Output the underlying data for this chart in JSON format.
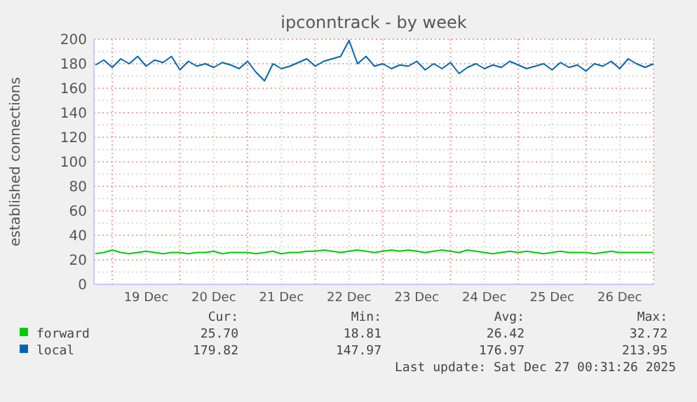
{
  "chart_data": {
    "type": "line",
    "title": "ipconntrack - by week",
    "ylabel": "established connections",
    "x": [
      "2025-12-18T18:00",
      "2025-12-18T21:00",
      "2025-12-19T00:00",
      "2025-12-19T03:00",
      "2025-12-19T06:00",
      "2025-12-19T09:00",
      "2025-12-19T12:00",
      "2025-12-19T15:00",
      "2025-12-19T18:00",
      "2025-12-19T21:00",
      "2025-12-20T00:00",
      "2025-12-20T03:00",
      "2025-12-20T06:00",
      "2025-12-20T09:00",
      "2025-12-20T12:00",
      "2025-12-20T15:00",
      "2025-12-20T18:00",
      "2025-12-20T21:00",
      "2025-12-21T00:00",
      "2025-12-21T03:00",
      "2025-12-21T06:00",
      "2025-12-21T09:00",
      "2025-12-21T12:00",
      "2025-12-21T15:00",
      "2025-12-21T18:00",
      "2025-12-21T21:00",
      "2025-12-22T00:00",
      "2025-12-22T03:00",
      "2025-12-22T06:00",
      "2025-12-22T09:00",
      "2025-12-22T12:00",
      "2025-12-22T15:00",
      "2025-12-22T18:00",
      "2025-12-22T21:00",
      "2025-12-23T00:00",
      "2025-12-23T03:00",
      "2025-12-23T06:00",
      "2025-12-23T09:00",
      "2025-12-23T12:00",
      "2025-12-23T15:00",
      "2025-12-23T18:00",
      "2025-12-23T21:00",
      "2025-12-24T00:00",
      "2025-12-24T03:00",
      "2025-12-24T06:00",
      "2025-12-24T09:00",
      "2025-12-24T12:00",
      "2025-12-24T15:00",
      "2025-12-24T18:00",
      "2025-12-24T21:00",
      "2025-12-25T00:00",
      "2025-12-25T03:00",
      "2025-12-25T06:00",
      "2025-12-25T09:00",
      "2025-12-25T12:00",
      "2025-12-25T15:00",
      "2025-12-25T18:00",
      "2025-12-25T21:00",
      "2025-12-26T00:00",
      "2025-12-26T03:00",
      "2025-12-26T06:00",
      "2025-12-26T09:00",
      "2025-12-26T12:00",
      "2025-12-26T15:00",
      "2025-12-26T18:00",
      "2025-12-26T21:00",
      "2025-12-27T00:00"
    ],
    "series": [
      {
        "name": "forward",
        "color": "#00cc00",
        "values": [
          25,
          26,
          28,
          26,
          25,
          26,
          27,
          26,
          25,
          26,
          26,
          25,
          26,
          26,
          27,
          25,
          26,
          26,
          26,
          25,
          26,
          27,
          25,
          26,
          26,
          27,
          27,
          28,
          27,
          26,
          27,
          28,
          27,
          26,
          27,
          28,
          27,
          28,
          27,
          26,
          27,
          28,
          27,
          26,
          28,
          27,
          26,
          25,
          26,
          27,
          26,
          27,
          26,
          25,
          26,
          27,
          26,
          26,
          26,
          25,
          26,
          27,
          26,
          26,
          26,
          26,
          26
        ]
      },
      {
        "name": "local",
        "color": "#0066b3",
        "values": [
          179,
          183,
          177,
          184,
          180,
          186,
          178,
          183,
          181,
          186,
          175,
          182,
          178,
          180,
          177,
          181,
          179,
          176,
          182,
          173,
          166,
          180,
          176,
          178,
          181,
          184,
          178,
          182,
          184,
          186,
          199,
          180,
          186,
          178,
          180,
          176,
          179,
          178,
          182,
          175,
          180,
          176,
          181,
          172,
          177,
          180,
          176,
          179,
          177,
          182,
          179,
          176,
          178,
          180,
          175,
          181,
          177,
          179,
          174,
          180,
          178,
          182,
          176,
          184,
          180,
          177,
          180
        ]
      }
    ],
    "xlim": [
      "2025-12-18T17:30",
      "2025-12-27T00:00"
    ],
    "xticks": [
      {
        "value": "2025-12-19T00:00",
        "label": null
      },
      {
        "value": "2025-12-19T12:00",
        "label": "19 Dec"
      },
      {
        "value": "2025-12-20T00:00",
        "label": null
      },
      {
        "value": "2025-12-20T12:00",
        "label": "20 Dec"
      },
      {
        "value": "2025-12-21T00:00",
        "label": null
      },
      {
        "value": "2025-12-21T12:00",
        "label": "21 Dec"
      },
      {
        "value": "2025-12-22T00:00",
        "label": null
      },
      {
        "value": "2025-12-22T12:00",
        "label": "22 Dec"
      },
      {
        "value": "2025-12-23T00:00",
        "label": null
      },
      {
        "value": "2025-12-23T12:00",
        "label": "23 Dec"
      },
      {
        "value": "2025-12-24T00:00",
        "label": null
      },
      {
        "value": "2025-12-24T12:00",
        "label": "24 Dec"
      },
      {
        "value": "2025-12-25T00:00",
        "label": null
      },
      {
        "value": "2025-12-25T12:00",
        "label": "25 Dec"
      },
      {
        "value": "2025-12-26T00:00",
        "label": null
      },
      {
        "value": "2025-12-26T12:00",
        "label": "26 Dec"
      },
      {
        "value": "2025-12-27T00:00",
        "label": null
      }
    ],
    "ylim": [
      0,
      200
    ],
    "yticks": [
      0,
      {
        "value": 10,
        "label": null
      },
      20,
      {
        "value": 30,
        "label": null
      },
      40,
      {
        "value": 50,
        "label": null
      },
      60,
      {
        "value": 70,
        "label": null
      },
      80,
      {
        "value": 90,
        "label": null
      },
      100,
      {
        "value": 110,
        "label": null
      },
      120,
      {
        "value": 130,
        "label": null
      },
      140,
      {
        "value": 150,
        "label": null
      },
      160,
      {
        "value": 170,
        "label": null
      },
      180,
      {
        "value": 190,
        "label": null
      },
      200
    ],
    "grid": true,
    "legend": "bottom",
    "line_style": "solid",
    "marker": "none",
    "annotations": [
      "Cur:",
      "Min:",
      "Avg:",
      "Max:",
      "25.70",
      "18.81",
      "26.42",
      "32.72",
      "179.82",
      "147.97",
      "176.97",
      "213.95",
      "Last update: Sat Dec 27 00:31:26 2025"
    ]
  }
}
